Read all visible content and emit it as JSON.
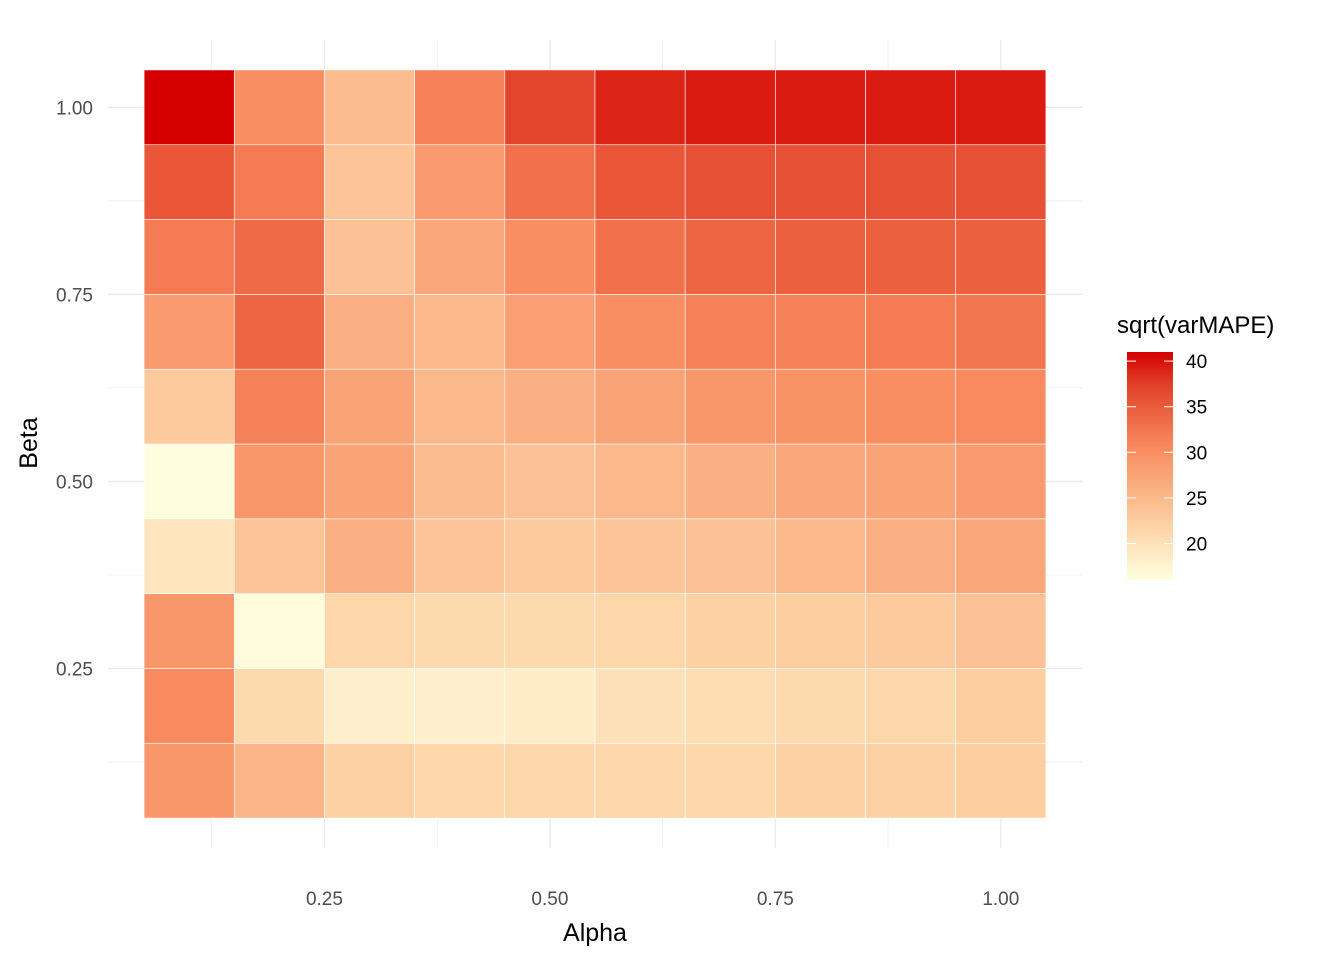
{
  "chart_data": {
    "type": "heatmap",
    "title": "",
    "xlabel": "Alpha",
    "ylabel": "Beta",
    "x": [
      0.1,
      0.2,
      0.3,
      0.4,
      0.5,
      0.6,
      0.7,
      0.8,
      0.9,
      1.0
    ],
    "y": [
      0.1,
      0.2,
      0.3,
      0.4,
      0.5,
      0.6,
      0.7,
      0.8,
      0.9,
      1.0
    ],
    "x_ticks": [
      {
        "value": 0.25,
        "label": "0.25"
      },
      {
        "value": 0.5,
        "label": "0.50"
      },
      {
        "value": 0.75,
        "label": "0.75"
      },
      {
        "value": 1.0,
        "label": "1.00"
      }
    ],
    "y_ticks": [
      {
        "value": 0.25,
        "label": "0.25"
      },
      {
        "value": 0.5,
        "label": "0.50"
      },
      {
        "value": 0.75,
        "label": "0.75"
      },
      {
        "value": 1.0,
        "label": "1.00"
      }
    ],
    "z_rows_by_beta": [
      [
        29.0,
        25.5,
        22.0,
        21.5,
        21.5,
        21.5,
        21.5,
        22.0,
        22.0,
        22.5
      ],
      [
        30.5,
        21.0,
        18.0,
        18.0,
        18.5,
        20.0,
        20.5,
        21.0,
        21.5,
        22.5
      ],
      [
        29.0,
        16.5,
        21.5,
        21.0,
        21.0,
        21.5,
        22.0,
        22.5,
        23.0,
        24.0
      ],
      [
        19.5,
        23.5,
        26.0,
        23.5,
        23.0,
        23.5,
        24.0,
        25.0,
        26.0,
        27.0
      ],
      [
        16.0,
        29.0,
        27.5,
        24.5,
        24.0,
        25.0,
        26.0,
        27.0,
        27.5,
        28.5
      ],
      [
        23.0,
        31.5,
        27.5,
        25.0,
        26.0,
        27.5,
        29.0,
        29.5,
        30.0,
        30.5
      ],
      [
        28.5,
        34.0,
        26.0,
        25.0,
        28.0,
        30.0,
        31.5,
        31.5,
        32.0,
        32.5
      ],
      [
        32.0,
        33.5,
        24.0,
        27.0,
        30.0,
        33.0,
        34.0,
        34.5,
        34.5,
        34.5
      ],
      [
        35.5,
        32.0,
        23.5,
        28.5,
        33.0,
        35.5,
        36.0,
        36.0,
        36.0,
        36.0
      ],
      [
        41.0,
        30.0,
        24.5,
        31.5,
        37.0,
        39.0,
        39.5,
        39.5,
        39.5,
        39.5
      ]
    ],
    "legend": {
      "title": "sqrt(varMAPE)",
      "position": "right",
      "min": 16.0,
      "max": 41.0,
      "breaks": [
        {
          "value": 20,
          "label": "20"
        },
        {
          "value": 25,
          "label": "25"
        },
        {
          "value": 30,
          "label": "30"
        },
        {
          "value": 35,
          "label": "35"
        },
        {
          "value": 40,
          "label": "40"
        }
      ]
    },
    "colors": {
      "low": "#ffffe0",
      "mid1": "#fdd0a2",
      "mid2": "#f7865a",
      "mid3": "#e2432a",
      "high": "#d40000",
      "panel_background": "#ffffff",
      "grid": "#ebebeb"
    },
    "grid": true
  }
}
